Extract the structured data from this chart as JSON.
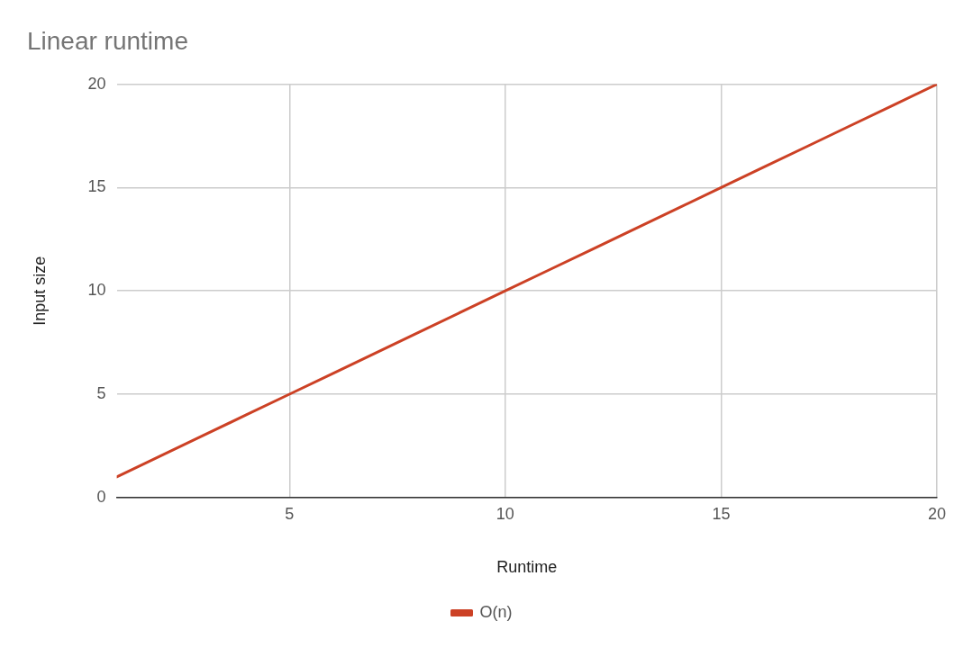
{
  "chart_data": {
    "type": "line",
    "title": "Linear runtime",
    "xlabel": "Runtime",
    "ylabel": "Input size",
    "x": [
      1,
      2,
      3,
      4,
      5,
      6,
      7,
      8,
      9,
      10,
      11,
      12,
      13,
      14,
      15,
      16,
      17,
      18,
      19,
      20
    ],
    "series": [
      {
        "name": "O(n)",
        "color": "#cc4125",
        "values": [
          1,
          2,
          3,
          4,
          5,
          6,
          7,
          8,
          9,
          10,
          11,
          12,
          13,
          14,
          15,
          16,
          17,
          18,
          19,
          20
        ]
      }
    ],
    "xlim": [
      1,
      20
    ],
    "xticks": [
      5,
      10,
      15,
      20
    ],
    "ylim": [
      0,
      20
    ],
    "yticks": [
      0,
      5,
      10,
      15,
      20
    ],
    "grid": true,
    "legend": "bottom",
    "marker": "none",
    "line_style": "solid"
  }
}
